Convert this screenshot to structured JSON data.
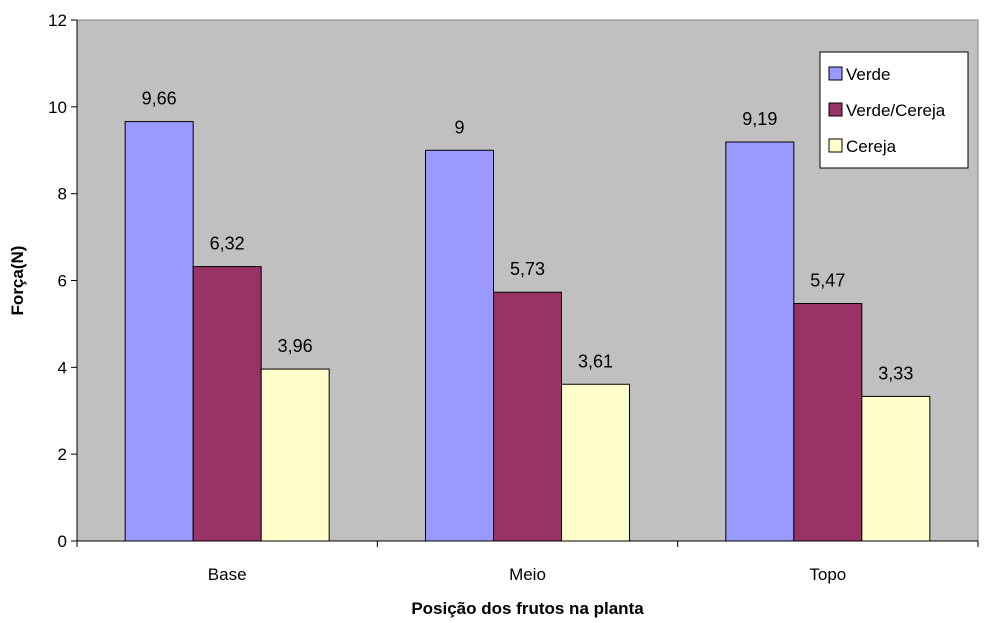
{
  "chart_data": {
    "type": "bar",
    "categories": [
      "Base",
      "Meio",
      "Topo"
    ],
    "series": [
      {
        "name": "Verde",
        "values": [
          9.66,
          9,
          9.19
        ],
        "labels": [
          "9,66",
          "9",
          "9,19"
        ],
        "color": "#9999ff"
      },
      {
        "name": "Verde/Cereja",
        "values": [
          6.32,
          5.73,
          5.47
        ],
        "labels": [
          "6,32",
          "5,73",
          "5,47"
        ],
        "color": "#993366"
      },
      {
        "name": "Cereja",
        "values": [
          3.96,
          3.61,
          3.33
        ],
        "labels": [
          "3,96",
          "3,61",
          "3,33"
        ],
        "color": "#ffffcc"
      }
    ],
    "xlabel": "Posição dos frutos na planta",
    "ylabel": "Força(N)",
    "ylim": [
      0,
      12
    ],
    "yticks": [
      0,
      2,
      4,
      6,
      8,
      10,
      12
    ],
    "grid": false,
    "legend": "top-right",
    "plot_background": "#c0c0c0"
  }
}
